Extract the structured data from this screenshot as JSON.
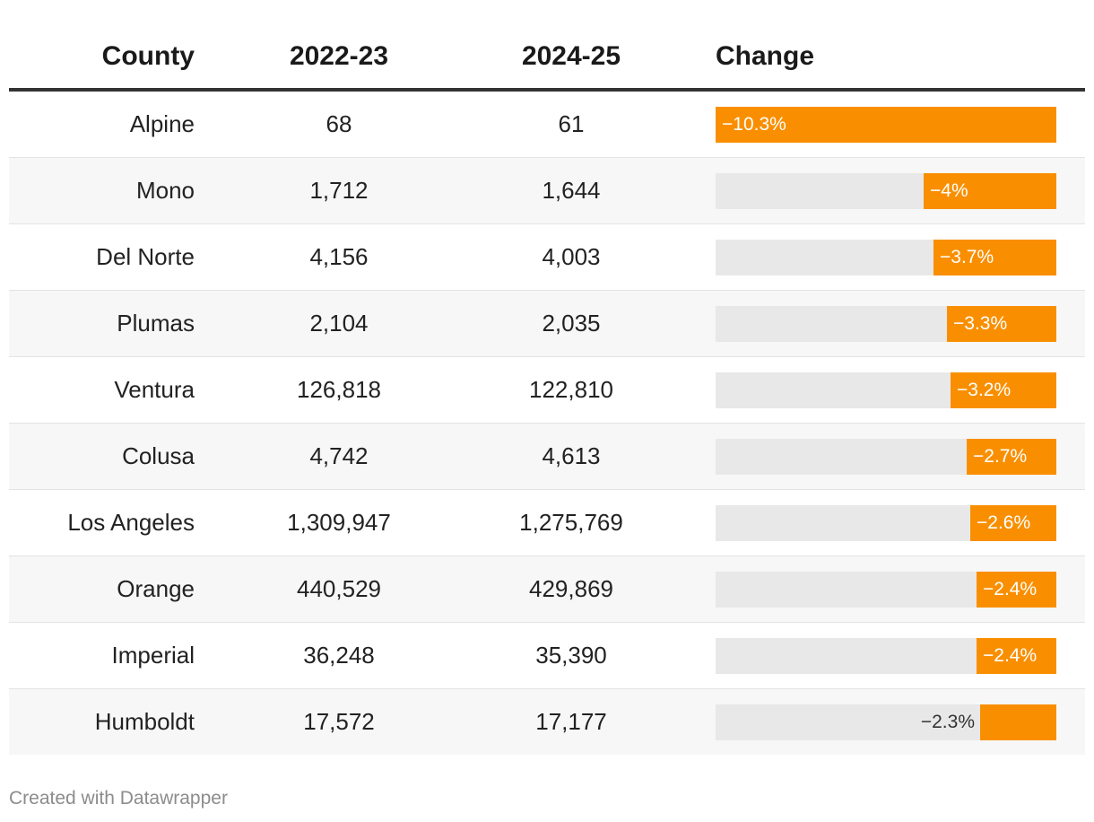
{
  "columns": {
    "county": "County",
    "y1": "2022-23",
    "y2": "2024-25",
    "change": "Change"
  },
  "chart_data": {
    "type": "table",
    "title": "",
    "bar_color": "#f98f00",
    "track_color": "#e8e8e8",
    "change_domain": [
      -10.3,
      0
    ],
    "rows": [
      {
        "county": "Alpine",
        "y1": "68",
        "y2": "61",
        "change": -10.3,
        "change_label": "−10.3%"
      },
      {
        "county": "Mono",
        "y1": "1,712",
        "y2": "1,644",
        "change": -4,
        "change_label": "−4%"
      },
      {
        "county": "Del Norte",
        "y1": "4,156",
        "y2": "4,003",
        "change": -3.7,
        "change_label": "−3.7%"
      },
      {
        "county": "Plumas",
        "y1": "2,104",
        "y2": "2,035",
        "change": -3.3,
        "change_label": "−3.3%"
      },
      {
        "county": "Ventura",
        "y1": "126,818",
        "y2": "122,810",
        "change": -3.2,
        "change_label": "−3.2%"
      },
      {
        "county": "Colusa",
        "y1": "4,742",
        "y2": "4,613",
        "change": -2.7,
        "change_label": "−2.7%"
      },
      {
        "county": "Los Angeles",
        "y1": "1,309,947",
        "y2": "1,275,769",
        "change": -2.6,
        "change_label": "−2.6%"
      },
      {
        "county": "Orange",
        "y1": "440,529",
        "y2": "429,869",
        "change": -2.4,
        "change_label": "−2.4%"
      },
      {
        "county": "Imperial",
        "y1": "36,248",
        "y2": "35,390",
        "change": -2.4,
        "change_label": "−2.4%"
      },
      {
        "county": "Humboldt",
        "y1": "17,572",
        "y2": "17,177",
        "change": -2.3,
        "change_label": "−2.3%"
      }
    ]
  },
  "footer": {
    "credit": "Created with Datawrapper"
  }
}
